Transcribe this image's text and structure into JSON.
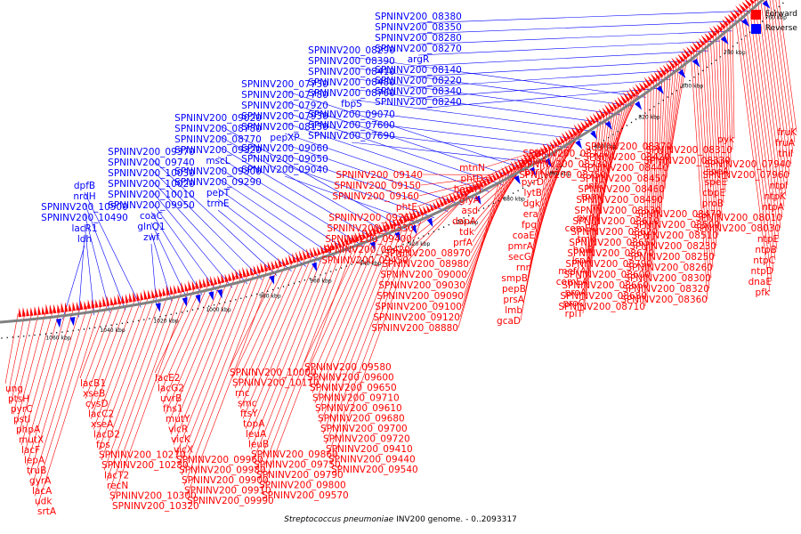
{
  "caption": {
    "organism": "Streptococcus pneumoniae",
    "rest": " INV200 genome. - 0..2093317"
  },
  "legend": [
    {
      "name": "Forward",
      "color": "#ff0000"
    },
    {
      "name": "Reverse",
      "color": "#0000ff"
    }
  ],
  "colors": {
    "forward": "#ff0000",
    "reverse": "#0000ff",
    "backbone": "#808080"
  },
  "kbp_ticks": [
    "760 kbp",
    "780 kbp",
    "800 kbp",
    "820 kbp",
    "840 kbp",
    "860 kbp",
    "880 kbp",
    "900 kbp",
    "920 kbp",
    "940 kbp",
    "960 kbp",
    "980 kbp",
    "1000 kbp",
    "1020 kbp",
    "1040 kbp",
    "1060 kbp"
  ],
  "reverse_labels": [
    "SPNINV200_08380",
    "SPNINV200_08350",
    "SPNINV200_08280",
    "SPNINV200_08270",
    "argR",
    "SPNINV200_08140",
    "SPNINV200_08220",
    "SPNINV200_08340",
    "SPNINV200_08240",
    "SPNINV200_08290",
    "SPNINV200_08390",
    "SPNINV200_08410",
    "SPNINV200_08480",
    "SPNINV200_08760",
    "fbpS",
    "SPNINV200_09070",
    "SPNINV200_07600",
    "SPNINV200_07690",
    "SPNINV200_07730",
    "SPNINV200_07780",
    "SPNINV200_07920",
    "SPNINV200_07930",
    "SPNINV200_08130",
    "pepXP",
    "SPNINV200_09060",
    "SPNINV200_09050",
    "SPNINV200_09040",
    "SPNINV200_09020",
    "SPNINV200_08780",
    "SPNINV200_08770",
    "SPNINV200_09320",
    "mscL",
    "SPNINV200_09300",
    "SPNINV200_09290",
    "pepT",
    "trmE",
    "SPNINV200_09370",
    "SPNINV200_09740",
    "SPNINV200_10030",
    "SPNINV200_10020",
    "SPNINV200_10010",
    "SPNINV200_09950",
    "coaC",
    "glnQ1",
    "zwf",
    "dpfB",
    "nrdH",
    "SPNINV200_10500",
    "SPNINV200_10490",
    "lacR1",
    "ldh"
  ],
  "forward_labels_right": [
    "fruK",
    "fruA",
    "thiI",
    "SPNINV200_07940",
    "SPNINV200_07960",
    "ntpI",
    "ntpK",
    "ntpA",
    "SPNINV200_08010",
    "SPNINV200_08030",
    "ntpE",
    "ntpB",
    "ntpC",
    "ntpD",
    "dnaE",
    "pfk",
    "pyk",
    "SPNINV200_08310",
    "SPNINV200_08330",
    "speA",
    "speE",
    "cbpE",
    "proB",
    "SPNINV200_08470",
    "SPNINV200_08500",
    "SPNINV200_08510",
    "SPNINV200_08230",
    "SPNINV200_08250",
    "SPNINV200_08260",
    "SPNINV200_08300",
    "SPNINV200_08320",
    "SPNINV200_08360",
    "SPNINV200_08370",
    "SPNINV200_08420",
    "SPNINV200_08440",
    "SPNINV200_08450",
    "SPNINV200_08460",
    "SPNINV200_08490",
    "SPNINV200_08530",
    "SPNINV200_08610",
    "SPNINV200_08620",
    "SPNINV200_08650",
    "SPNINV200_08670",
    "SPNINV200_08790",
    "SPNINV200_08600",
    "SPNINV200_08660",
    "SPNINV200_08680",
    "SPNINV200_08710",
    "SPNINV200_08720",
    "SPNINV200_08730",
    "SPNINV200_08750",
    "infC",
    "rpmI",
    "rrf",
    "pyrH",
    "comEC",
    "tmk",
    "holB",
    "lspA",
    "mef(A)",
    "comEA",
    "proA",
    "proC",
    "rplT",
    "gloA",
    "pyrK",
    "pyrD",
    "lytB",
    "dgk",
    "era",
    "fpg",
    "coaE",
    "pmrA",
    "secG",
    "rnr",
    "smpB",
    "pepB",
    "prsA",
    "lmb",
    "gcaD",
    "mtnN",
    "phtD",
    "hemH",
    "glyA",
    "asd",
    "dapA",
    "tdk",
    "prfA",
    "SPNINV200_08970",
    "SPNINV200_08980",
    "SPNINV200_09000",
    "SPNINV200_09030",
    "SPNINV200_09090",
    "SPNINV200_09100",
    "SPNINV200_09120",
    "SPNINV200_08880",
    "SPNINV200_09140",
    "SPNINV200_09150",
    "SPNINV200_09160",
    "phtE",
    "SPNINV200_09260",
    "SPNINV200_09330",
    "SPNINV200_09400",
    "SPNINV200_09420",
    "SPNINV200_09450"
  ],
  "forward_labels_left": [
    "ung",
    "ptsH",
    "pyrC",
    "pstI",
    "phpA",
    "mutX",
    "lacF",
    "lepA",
    "truB",
    "gyrA",
    "lacA",
    "udk",
    "srtA",
    "lacB1",
    "xseB",
    "cysD",
    "lacC2",
    "xseA",
    "lacD2",
    "fps",
    "SPNINV200_10270",
    "SPNINV200_10280",
    "lacT2",
    "recN",
    "SPNINV200_10300",
    "SPNINV200_10320",
    "lacE2",
    "lacG2",
    "uvrB",
    "fhs1",
    "mutY",
    "vicR",
    "vicK",
    "vicX",
    "SPNINV200_09960",
    "SPNINV200_09980",
    "SPNINV200_09900",
    "SPNINV200_09910",
    "SPNINV200_09990",
    "SPNINV200_10000",
    "SPNINV200_10110",
    "rnc",
    "smc",
    "ftsY",
    "topA",
    "leuA",
    "leuB",
    "SPNINV200_09860",
    "SPNINV200_09750",
    "SPNINV200_09790",
    "SPNINV200_09800",
    "SPNINV200_09570",
    "SPNINV200_09580",
    "SPNINV200_09600",
    "SPNINV200_09650",
    "SPNINV200_09710",
    "SPNINV200_09610",
    "SPNINV200_09680",
    "SPNINV200_09700",
    "SPNINV200_09720",
    "SPNINV200_09410",
    "SPNINV200_09440",
    "SPNINV200_09540"
  ]
}
